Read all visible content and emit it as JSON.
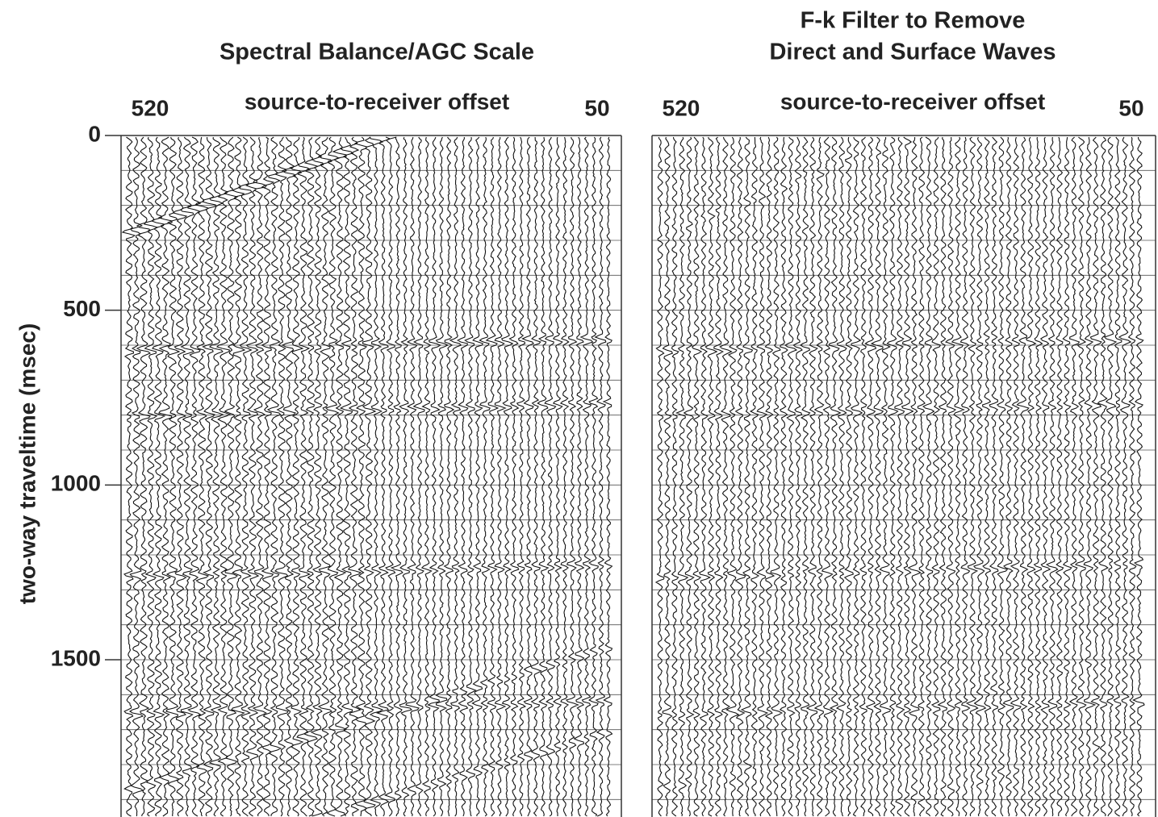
{
  "y_axis": {
    "label": "two-way traveltime (msec)",
    "ticks": [
      0,
      500,
      1000,
      1500
    ],
    "ylim": [
      0,
      1950
    ]
  },
  "panels": [
    {
      "title": [
        "Spectral Balance/AGC Scale"
      ],
      "x_label": "source-to-receiver offset",
      "x_left": "520",
      "x_right": "50"
    },
    {
      "title": [
        "F-k Filter to Remove",
        "Direct and Surface Waves"
      ],
      "x_label": "source-to-receiver offset",
      "x_left": "520",
      "x_right": "50"
    }
  ]
}
